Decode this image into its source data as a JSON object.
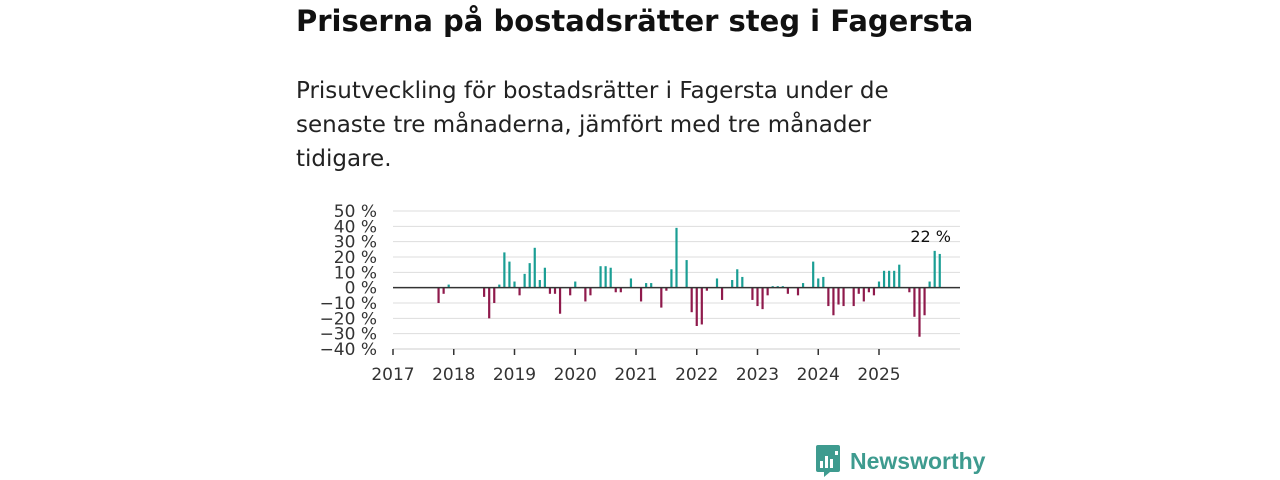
{
  "chart_data": {
    "type": "bar",
    "title": "Priserna på bostadsrätter steg i Fagersta",
    "subtitle": "Prisutveckling för bostadsrätter i Fagersta under de senaste tre månaderna, jämfört med tre månader tidigare.",
    "xlabel": "",
    "ylabel": "",
    "ylim": [
      -40,
      50
    ],
    "yticks": [
      50,
      40,
      30,
      20,
      10,
      0,
      -10,
      -20,
      -30,
      -40
    ],
    "ytick_labels": [
      "50 %",
      "40 %",
      "30 %",
      "20 %",
      "10 %",
      "0 %",
      "−10 %",
      "−20 %",
      "−30 %",
      "−40 %"
    ],
    "xticks": [
      "2017",
      "2018",
      "2019",
      "2020",
      "2021",
      "2022",
      "2023",
      "2024",
      "2025"
    ],
    "xlim_months": [
      0,
      112
    ],
    "grid": true,
    "legend": "none",
    "positive_color": "#1a9e94",
    "negative_color": "#8f1a4c",
    "zero_line_color": "#333333",
    "annotation": {
      "text": "22 %",
      "month": 107
    },
    "series": [
      {
        "name": "Prisutveckling",
        "points": [
          {
            "month": 9,
            "value": -10
          },
          {
            "month": 10,
            "value": -4
          },
          {
            "month": 11,
            "value": 2
          },
          {
            "month": 18,
            "value": -6
          },
          {
            "month": 19,
            "value": -20
          },
          {
            "month": 20,
            "value": -10
          },
          {
            "month": 21,
            "value": 2
          },
          {
            "month": 22,
            "value": 23
          },
          {
            "month": 23,
            "value": 17
          },
          {
            "month": 24,
            "value": 4
          },
          {
            "month": 25,
            "value": -5
          },
          {
            "month": 26,
            "value": 9
          },
          {
            "month": 27,
            "value": 16
          },
          {
            "month": 28,
            "value": 26
          },
          {
            "month": 29,
            "value": 5
          },
          {
            "month": 30,
            "value": 13
          },
          {
            "month": 31,
            "value": -4
          },
          {
            "month": 32,
            "value": -4
          },
          {
            "month": 33,
            "value": -17
          },
          {
            "month": 35,
            "value": -5
          },
          {
            "month": 36,
            "value": 4
          },
          {
            "month": 38,
            "value": -9
          },
          {
            "month": 39,
            "value": -5
          },
          {
            "month": 41,
            "value": 14
          },
          {
            "month": 42,
            "value": 14
          },
          {
            "month": 43,
            "value": 13
          },
          {
            "month": 44,
            "value": -3
          },
          {
            "month": 45,
            "value": -3
          },
          {
            "month": 47,
            "value": 6
          },
          {
            "month": 49,
            "value": -9
          },
          {
            "month": 50,
            "value": 3
          },
          {
            "month": 51,
            "value": 3
          },
          {
            "month": 53,
            "value": -13
          },
          {
            "month": 54,
            "value": -2
          },
          {
            "month": 55,
            "value": 12
          },
          {
            "month": 56,
            "value": 39
          },
          {
            "month": 58,
            "value": 18
          },
          {
            "month": 59,
            "value": -16
          },
          {
            "month": 60,
            "value": -25
          },
          {
            "month": 61,
            "value": -24
          },
          {
            "month": 62,
            "value": -2
          },
          {
            "month": 64,
            "value": 6
          },
          {
            "month": 65,
            "value": -8
          },
          {
            "month": 67,
            "value": 5
          },
          {
            "month": 68,
            "value": 12
          },
          {
            "month": 69,
            "value": 7
          },
          {
            "month": 71,
            "value": -8
          },
          {
            "month": 72,
            "value": -12
          },
          {
            "month": 73,
            "value": -14
          },
          {
            "month": 74,
            "value": -5
          },
          {
            "month": 75,
            "value": 1
          },
          {
            "month": 76,
            "value": 1
          },
          {
            "month": 77,
            "value": 1
          },
          {
            "month": 78,
            "value": -4
          },
          {
            "month": 80,
            "value": -5
          },
          {
            "month": 81,
            "value": 3
          },
          {
            "month": 83,
            "value": 17
          },
          {
            "month": 84,
            "value": 6
          },
          {
            "month": 85,
            "value": 7
          },
          {
            "month": 86,
            "value": -12
          },
          {
            "month": 87,
            "value": -18
          },
          {
            "month": 88,
            "value": -11
          },
          {
            "month": 89,
            "value": -12
          },
          {
            "month": 91,
            "value": -12
          },
          {
            "month": 92,
            "value": -4
          },
          {
            "month": 93,
            "value": -9
          },
          {
            "month": 94,
            "value": -3
          },
          {
            "month": 95,
            "value": -5
          },
          {
            "month": 96,
            "value": 4
          },
          {
            "month": 97,
            "value": 11
          },
          {
            "month": 98,
            "value": 11
          },
          {
            "month": 99,
            "value": 11
          },
          {
            "month": 100,
            "value": 15
          },
          {
            "month": 102,
            "value": -3
          },
          {
            "month": 103,
            "value": -19
          },
          {
            "month": 104,
            "value": -32
          },
          {
            "month": 105,
            "value": -18
          },
          {
            "month": 106,
            "value": 4
          },
          {
            "month": 107,
            "value": 24
          },
          {
            "month": 108,
            "value": 22
          }
        ]
      }
    ]
  },
  "brand": {
    "name": "Newsworthy",
    "color": "#3e9b8f"
  }
}
